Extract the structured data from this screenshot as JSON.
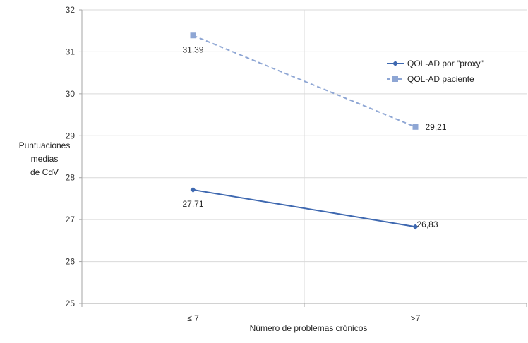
{
  "chart_data": {
    "type": "line",
    "categories": [
      "≤ 7",
      ">7"
    ],
    "ylim": [
      25,
      32
    ],
    "yticks": [
      25,
      26,
      27,
      28,
      29,
      30,
      31,
      32
    ],
    "ylabel_lines": [
      "Puntuaciones",
      "medias",
      "de CdV"
    ],
    "xlabel": "Número de problemas crónicos",
    "grid": {
      "horizontal": true,
      "vertical": true
    },
    "legend_position": "right",
    "series": [
      {
        "name": "QOL-AD por \"proxy\"",
        "values": [
          27.71,
          26.83
        ],
        "value_labels": [
          "27,71",
          "26,83"
        ],
        "color": "#3E68B0",
        "line_style": "solid",
        "marker": "diamond"
      },
      {
        "name": "QOL-AD paciente",
        "values": [
          31.39,
          29.21
        ],
        "value_labels": [
          "31,39",
          "29,21"
        ],
        "color": "#8EA6D4",
        "line_style": "dashed",
        "marker": "square"
      }
    ]
  }
}
